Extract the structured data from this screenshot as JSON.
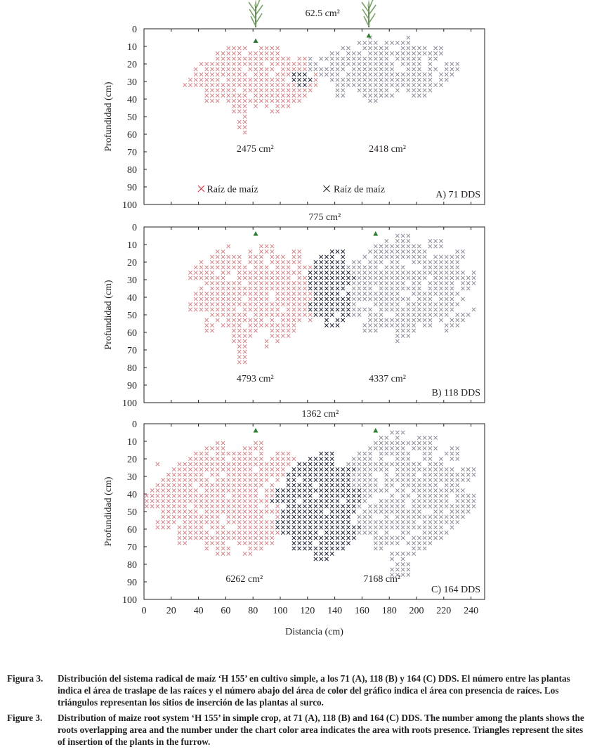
{
  "chart_data": {
    "type": "scatter",
    "description_units": "root presence grid; distance (cm) vs depth (cm)",
    "xlabel": "Distancia (cm)",
    "ylabel": "Profundidad (cm)",
    "xlim": [
      0,
      250
    ],
    "ylim": [
      0,
      100
    ],
    "xticks": [
      0,
      20,
      40,
      60,
      80,
      100,
      120,
      140,
      160,
      180,
      200,
      220,
      240
    ],
    "yticks": [
      0,
      10,
      20,
      30,
      40,
      50,
      60,
      70,
      80,
      90,
      100
    ],
    "legend": [
      {
        "label": "Raíz de maíz",
        "color": "#d9232e"
      },
      {
        "label": "Raíz de maíz",
        "color": "#231f20"
      }
    ],
    "colors": {
      "plant1": "#d4868a",
      "plant2": "#8c8e9c",
      "overlap": "#1f2338",
      "triangle": "#2f7d32",
      "stem": "#6e8f5a"
    },
    "panels": [
      {
        "label": "A) 71 DDS",
        "overlap_area": "62.5 cm²",
        "area_left": "2475 cm²",
        "area_right": "2418 cm²",
        "plant_x": [
          82,
          165
        ],
        "left_zone": {
          "x": [
            34,
            128
          ],
          "y": [
            10,
            47
          ],
          "col": [
            [
              70,
              77,
              32,
              61
            ]
          ]
        },
        "right_zone": {
          "x": [
            122,
            228
          ],
          "y": [
            6,
            40
          ],
          "col": [
            [
              118,
              130,
              17,
              26
            ]
          ]
        },
        "overlap_zone": {
          "x": [
            108,
            122
          ],
          "y": [
            24,
            33
          ]
        }
      },
      {
        "label": "B) 118 DDS",
        "overlap_area": "775 cm²",
        "area_left": "4793 cm²",
        "area_right": "4337 cm²",
        "plant_x": [
          82,
          170
        ],
        "left_zone": {
          "x": [
            34,
            135
          ],
          "y": [
            11,
            65
          ],
          "col": [
            [
              70,
              77,
              64,
              78
            ]
          ]
        },
        "right_zone": {
          "x": [
            140,
            242
          ],
          "y": [
            6,
            62
          ]
        },
        "overlap_zone": {
          "x": [
            120,
            153
          ],
          "y": [
            12,
            56
          ]
        }
      },
      {
        "label": "C) 164 DDS",
        "overlap_area": "1362 cm²",
        "area_left": "6262 cm²",
        "area_right": "7168 cm²",
        "plant_x": [
          82,
          170
        ],
        "left_zone": {
          "x": [
            2,
            135
          ],
          "y": [
            12,
            72
          ],
          "col": [
            [
              54,
              64,
              68,
              74
            ],
            [
              124,
              132,
              66,
              76
            ]
          ]
        },
        "right_zone": {
          "x": [
            144,
            242
          ],
          "y": [
            6,
            72
          ],
          "col": [
            [
              180,
              194,
              72,
              88
            ]
          ]
        },
        "overlap_zone": {
          "x": [
            97,
            158
          ],
          "y": [
            16,
            76
          ]
        }
      }
    ]
  },
  "caption": {
    "es_label": "Figura 3.",
    "es_text": "Distribución del sistema radical de maíz ‘H 155’ en cultivo simple, a los 71 (A), 118 (B) y 164 (C) DDS. El número entre las plantas indica el área de traslape de las raíces y el número abajo del área de color del gráfico indica el área con presencia de raíces. Los triángulos representan los sitios de inserción de las plantas al surco.",
    "en_label": "Figure 3.",
    "en_text": "Distribution of maize root system ‘H 155’ in simple crop, at 71 (A), 118 (B) and 164 (C) DDS. The number among the plants shows the roots overlapping area and the number under the chart color area indicates the area with roots presence. Triangles represent the sites of insertion of the plants in the furrow."
  }
}
